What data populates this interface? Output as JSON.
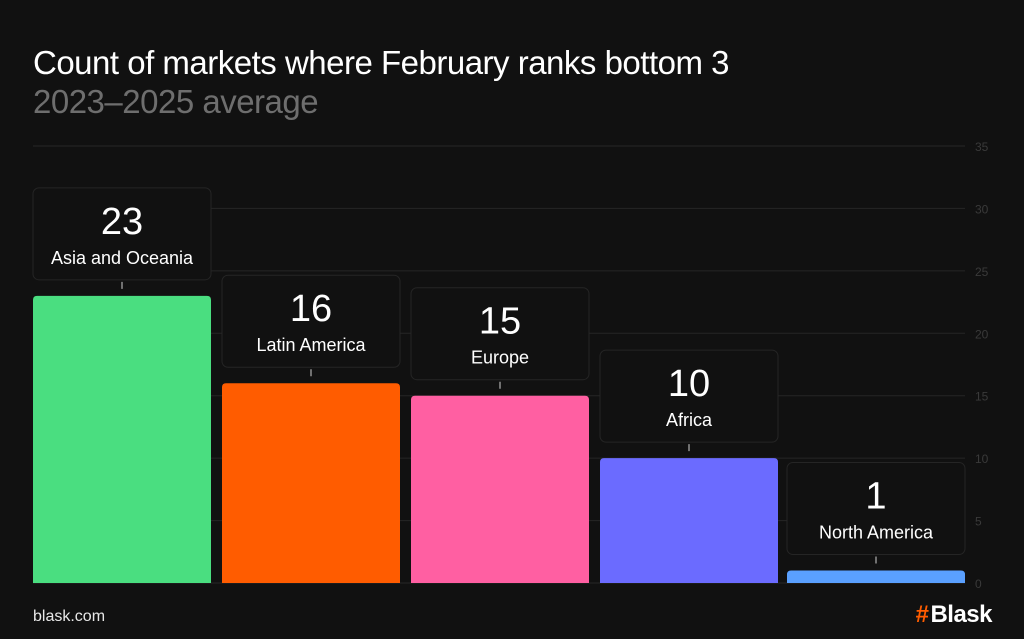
{
  "chart_data": {
    "type": "bar",
    "title": "Count of markets where February ranks bottom 3",
    "subtitle": "2023–2025 average",
    "categories": [
      "Asia and Oceania",
      "Latin America",
      "Europe",
      "Africa",
      "North America"
    ],
    "values": [
      23,
      16,
      15,
      10,
      1
    ],
    "colors": [
      "#4ade80",
      "#ff5c00",
      "#ff5fa2",
      "#6b6bff",
      "#5aa0ff"
    ],
    "ylim": [
      0,
      35
    ],
    "yticks": [
      0,
      5,
      10,
      15,
      20,
      25,
      30,
      35
    ],
    "grid": true,
    "xlabel": "",
    "ylabel": ""
  },
  "footer": {
    "site": "blask.com",
    "logo": "Blask"
  }
}
